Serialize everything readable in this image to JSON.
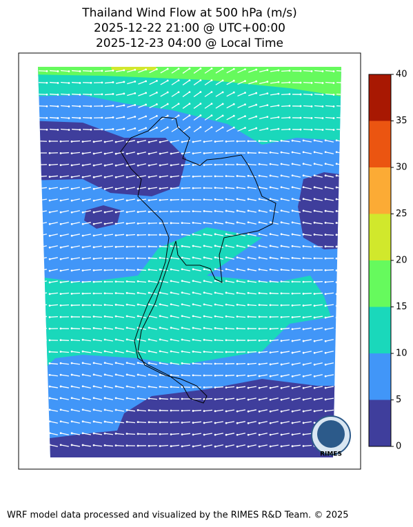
{
  "title": [
    "Thailand Wind Flow at 500 hPa (m/s)",
    "2025-12-22 21:00 @ UTC+00:00",
    "2025-12-23 04:00 @ Local Time"
  ],
  "colorbar": {
    "lim": [
      0,
      40
    ],
    "ticks": [
      0,
      5,
      10,
      15,
      20,
      25,
      30,
      35,
      40
    ],
    "colors": [
      "#3f3e9c",
      "#4196f8",
      "#1ad8bb",
      "#66fa5d",
      "#d1e82c",
      "#fcab35",
      "#eb5511",
      "#a81802"
    ]
  },
  "logo_text": "RIMES",
  "footer": "WRF model data processed and visualized by the RIMES R&D Team. © 2025"
}
